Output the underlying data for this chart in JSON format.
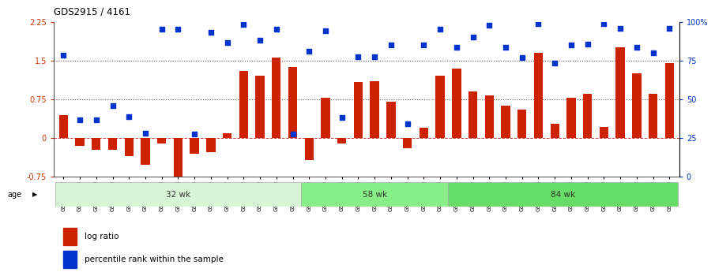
{
  "title": "GDS2915 / 4161",
  "samples": [
    "GSM97277",
    "GSM97278",
    "GSM97279",
    "GSM97280",
    "GSM97281",
    "GSM97282",
    "GSM97283",
    "GSM97284",
    "GSM97285",
    "GSM97286",
    "GSM97287",
    "GSM97288",
    "GSM97289",
    "GSM97290",
    "GSM97291",
    "GSM97292",
    "GSM97293",
    "GSM97294",
    "GSM97295",
    "GSM97296",
    "GSM97297",
    "GSM97298",
    "GSM97299",
    "GSM97300",
    "GSM97301",
    "GSM97302",
    "GSM97303",
    "GSM97304",
    "GSM97305",
    "GSM97306",
    "GSM97307",
    "GSM97308",
    "GSM97309",
    "GSM97310",
    "GSM97311",
    "GSM97312",
    "GSM97313",
    "GSM97314"
  ],
  "log_ratio": [
    0.45,
    -0.15,
    -0.22,
    -0.22,
    -0.35,
    -0.52,
    -0.1,
    -0.82,
    -0.3,
    -0.28,
    0.1,
    1.3,
    1.2,
    1.55,
    1.38,
    -0.42,
    0.78,
    -0.1,
    1.08,
    1.1,
    0.7,
    -0.2,
    0.2,
    1.2,
    1.35,
    0.9,
    0.82,
    0.62,
    0.55,
    1.65,
    0.28,
    0.78,
    0.85,
    0.22,
    1.75,
    1.25,
    0.85,
    1.45
  ],
  "percentile_left": [
    1.6,
    0.35,
    0.35,
    0.62,
    0.42,
    0.1,
    2.1,
    2.1,
    0.08,
    2.05,
    1.85,
    2.2,
    1.9,
    2.1,
    0.08,
    1.68,
    2.08,
    0.4,
    1.58,
    1.58,
    1.8,
    0.28,
    1.8,
    2.1,
    1.75,
    1.95,
    2.18,
    1.75,
    1.55,
    2.22,
    1.45,
    1.8,
    1.82,
    2.22,
    2.12,
    1.75,
    1.65,
    2.12
  ],
  "groups": [
    {
      "label": "32 wk",
      "start": 0,
      "end": 15,
      "color": "#d5f5d5"
    },
    {
      "label": "58 wk",
      "start": 15,
      "end": 24,
      "color": "#88ee88"
    },
    {
      "label": "84 wk",
      "start": 24,
      "end": 38,
      "color": "#66dd66"
    }
  ],
  "ylim_left": [
    -0.75,
    2.25
  ],
  "ylim_right": [
    0,
    100
  ],
  "yticks_left": [
    -0.75,
    0,
    0.75,
    1.5,
    2.25
  ],
  "ytick_labels_left": [
    "-0.75",
    "0",
    "0.75",
    "1.5",
    "2.25"
  ],
  "yticks_right": [
    0,
    25,
    50,
    75,
    100
  ],
  "ytick_labels_right": [
    "0",
    "25",
    "50",
    "75",
    "100%"
  ],
  "hlines": [
    0.75,
    1.5
  ],
  "bar_color": "#cc2200",
  "dot_color": "#0033cc",
  "zero_line_color": "#cc4444",
  "hline_color": "#555555",
  "bg_color": "#ffffff",
  "left_tick_color": "#cc3300",
  "right_tick_color": "#0033cc"
}
